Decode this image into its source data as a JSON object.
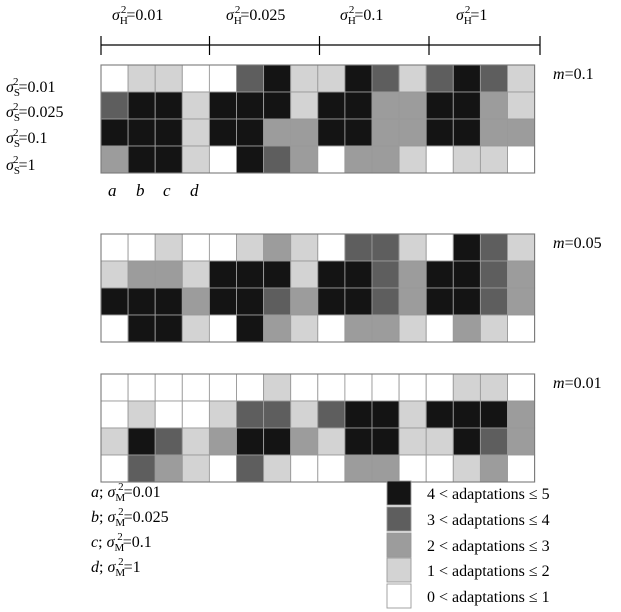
{
  "header": {
    "groups": [
      {
        "sym": "σ",
        "sub": "H",
        "sup": "2",
        "value": "=0.01"
      },
      {
        "sym": "σ",
        "sub": "H",
        "sup": "2",
        "value": "=0.025"
      },
      {
        "sym": "σ",
        "sub": "H",
        "sup": "2",
        "value": "=0.1"
      },
      {
        "sym": "σ",
        "sub": "H",
        "sup": "2",
        "value": "=1"
      }
    ]
  },
  "row_labels": [
    {
      "sym": "σ",
      "sub": "S",
      "sup": "2",
      "value": "=0.01"
    },
    {
      "sym": "σ",
      "sub": "S",
      "sup": "2",
      "value": "=0.025"
    },
    {
      "sym": "σ",
      "sub": "S",
      "sup": "2",
      "value": "=0.1"
    },
    {
      "sym": "σ",
      "sub": "S",
      "sup": "2",
      "value": "=1"
    }
  ],
  "column_letters": [
    "a",
    "b",
    "c",
    "d"
  ],
  "panels": [
    {
      "m_label": {
        "var": "m",
        "value": "=0.1"
      },
      "levels": [
        [
          0,
          2,
          2,
          0,
          1,
          4,
          5,
          2,
          2,
          5,
          4,
          2,
          4,
          5,
          4,
          2
        ],
        [
          4,
          5,
          5,
          2,
          5,
          5,
          5,
          2,
          5,
          5,
          3,
          3,
          5,
          5,
          3,
          2
        ],
        [
          5,
          5,
          5,
          2,
          5,
          5,
          3,
          3,
          5,
          5,
          3,
          3,
          5,
          5,
          3,
          3
        ],
        [
          3,
          5,
          5,
          2,
          1,
          5,
          4,
          3,
          1,
          3,
          3,
          2,
          1,
          2,
          2,
          1
        ]
      ]
    },
    {
      "m_label": {
        "var": "m",
        "value": "=0.05"
      },
      "levels": [
        [
          1,
          1,
          2,
          1,
          1,
          2,
          3,
          2,
          1,
          4,
          4,
          2,
          1,
          5,
          4,
          2
        ],
        [
          2,
          3,
          3,
          2,
          5,
          5,
          5,
          2,
          5,
          5,
          4,
          3,
          5,
          5,
          4,
          3
        ],
        [
          5,
          5,
          5,
          3,
          5,
          5,
          4,
          3,
          5,
          5,
          4,
          3,
          5,
          5,
          4,
          3
        ],
        [
          1,
          5,
          5,
          2,
          1,
          5,
          3,
          2,
          1,
          3,
          3,
          2,
          1,
          3,
          2,
          1
        ]
      ]
    },
    {
      "m_label": {
        "var": "m",
        "value": "=0.01"
      },
      "levels": [
        [
          1,
          1,
          1,
          1,
          1,
          1,
          2,
          1,
          1,
          1,
          1,
          1,
          1,
          2,
          2,
          1
        ],
        [
          1,
          2,
          1,
          1,
          2,
          4,
          4,
          2,
          4,
          5,
          5,
          2,
          5,
          5,
          5,
          3
        ],
        [
          2,
          5,
          4,
          2,
          3,
          5,
          5,
          3,
          2,
          5,
          5,
          2,
          2,
          5,
          4,
          3
        ],
        [
          1,
          4,
          3,
          2,
          1,
          4,
          2,
          1,
          1,
          3,
          3,
          1,
          1,
          2,
          3,
          1
        ]
      ]
    }
  ],
  "mutation_key": [
    {
      "letter": "a",
      "sym": "σ",
      "sub": "M",
      "sup": "2",
      "value": "=0.01"
    },
    {
      "letter": "b",
      "sym": "σ",
      "sub": "M",
      "sup": "2",
      "value": "=0.025"
    },
    {
      "letter": "c",
      "sym": "σ",
      "sub": "M",
      "sup": "2",
      "value": "=0.1"
    },
    {
      "letter": "d",
      "sym": "σ",
      "sub": "M",
      "sup": "2",
      "value": "=1"
    }
  ],
  "legend": [
    {
      "level": 5,
      "label": "4 < adaptations ≤ 5",
      "color": "#141414"
    },
    {
      "level": 4,
      "label": "3 < adaptations ≤ 4",
      "color": "#5e5e5e"
    },
    {
      "level": 3,
      "label": "2 < adaptations ≤ 3",
      "color": "#9c9c9c"
    },
    {
      "level": 2,
      "label": "1 < adaptations ≤ 2",
      "color": "#d3d3d3"
    },
    {
      "level": 1,
      "label": "0 < adaptations ≤ 1",
      "color": "#ffffff"
    }
  ],
  "grid_line_color": "#9a9a9a"
}
